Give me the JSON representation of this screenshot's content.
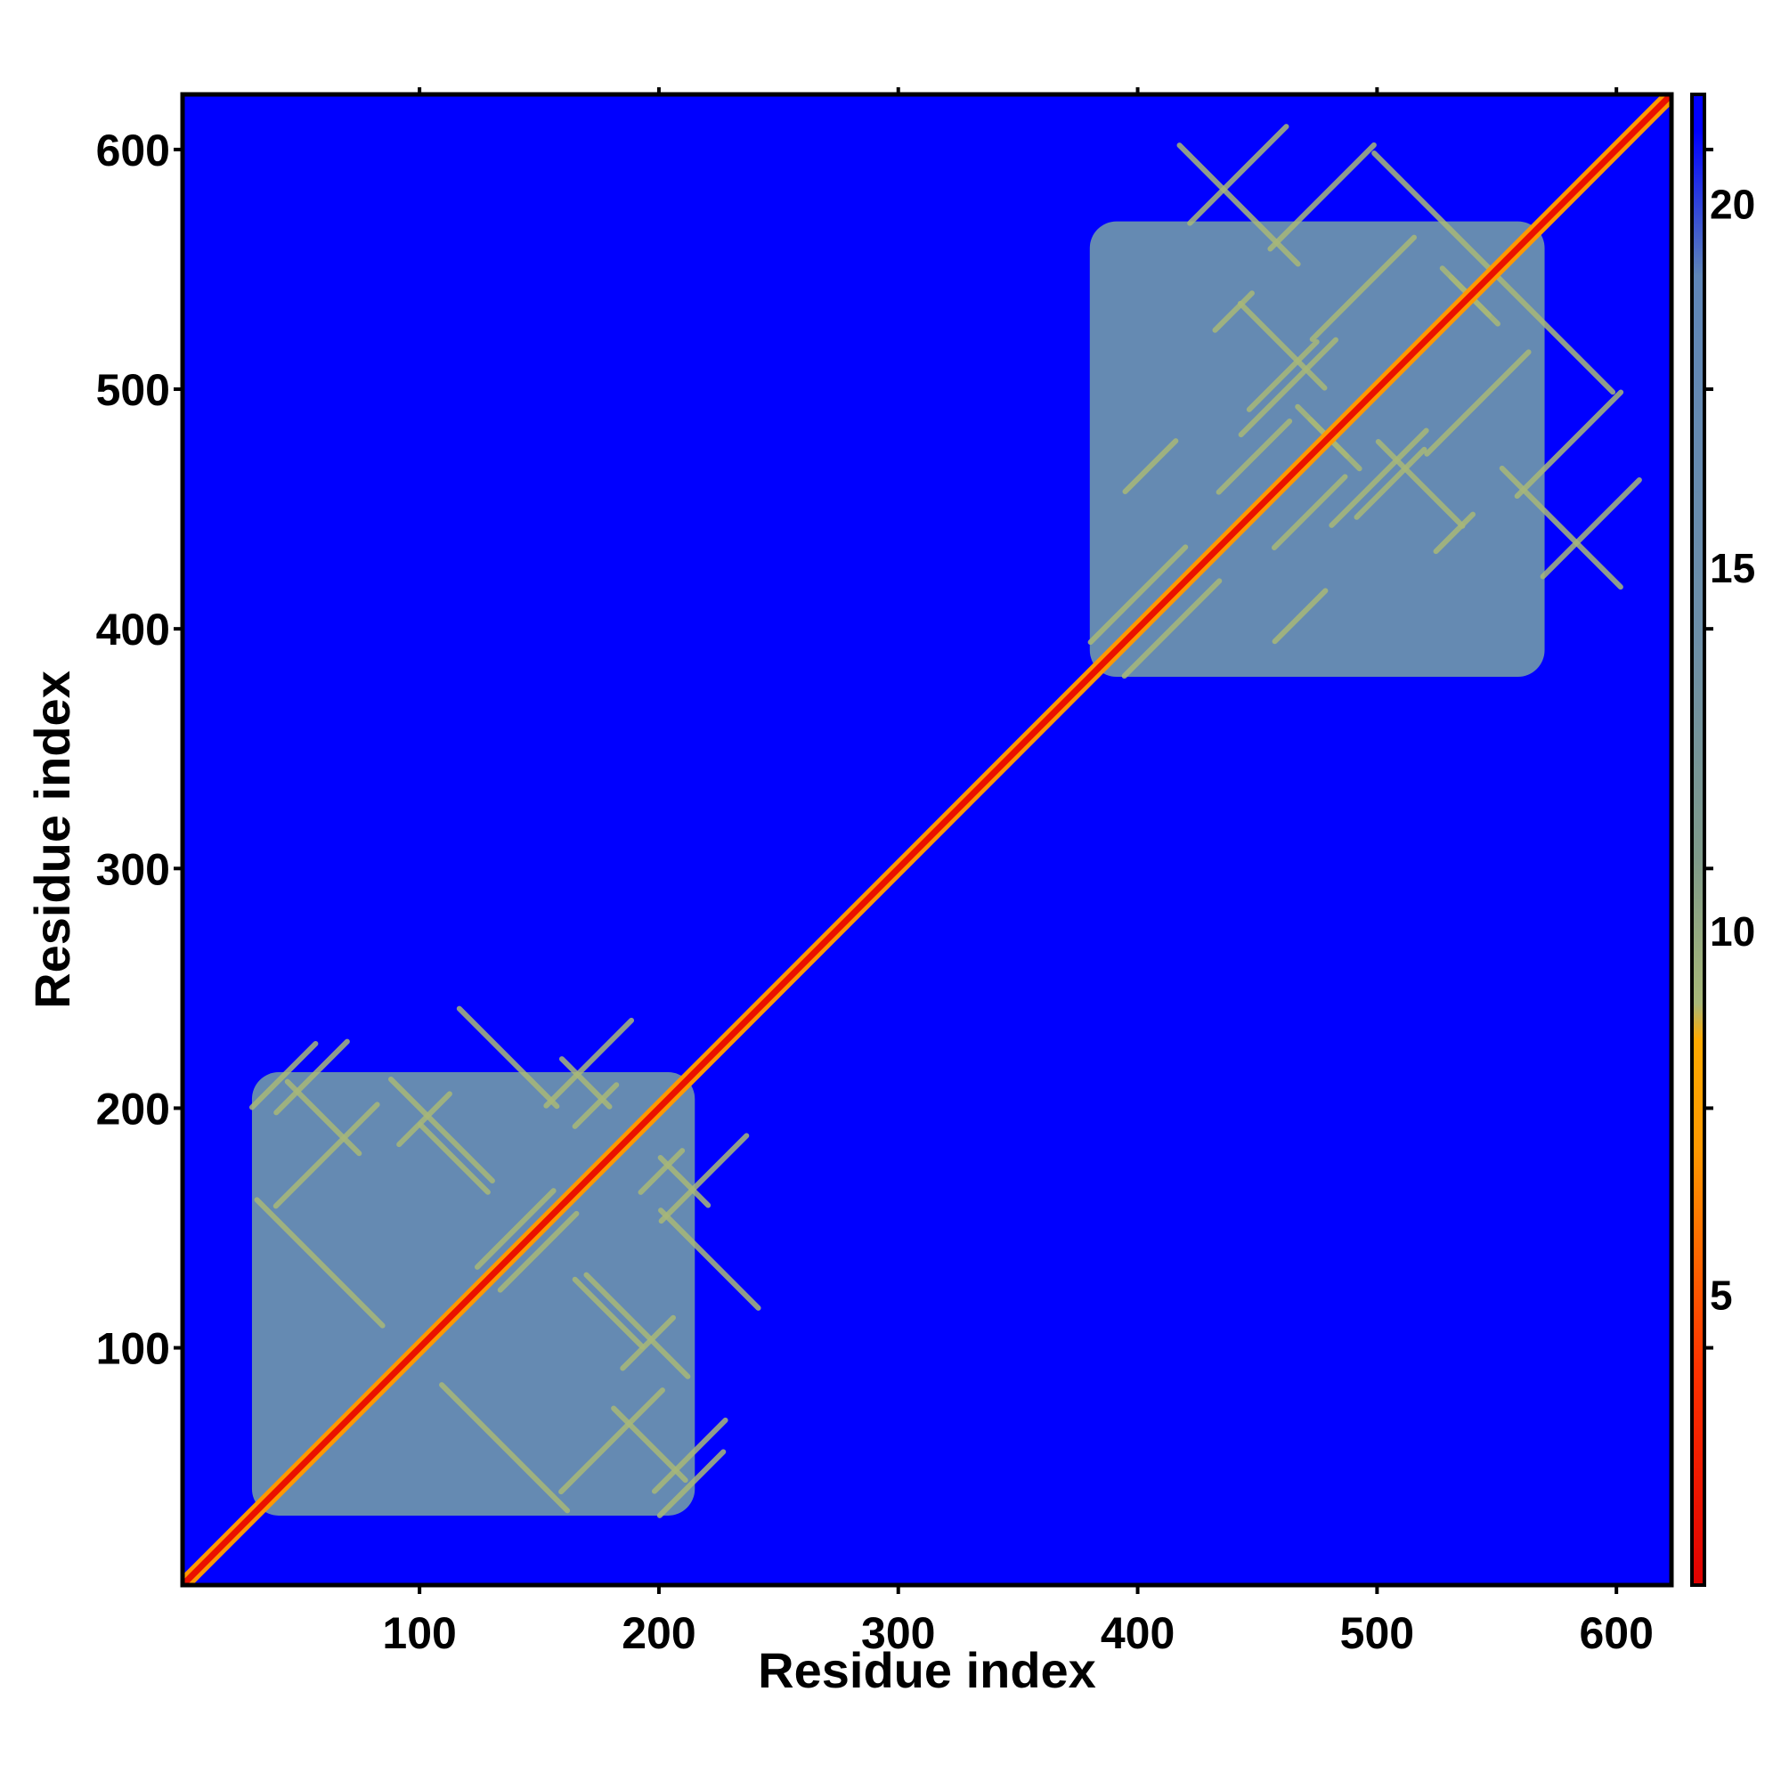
{
  "chart_data": {
    "type": "heatmap",
    "title": "",
    "xlabel": "Residue index",
    "ylabel": "Residue index",
    "xlim": [
      1,
      623
    ],
    "ylim": [
      1,
      623
    ],
    "x_ticks": [
      100,
      200,
      300,
      400,
      500,
      600
    ],
    "y_ticks": [
      100,
      200,
      300,
      400,
      500,
      600
    ],
    "colorbar": {
      "ticks": [
        5,
        10,
        15,
        20
      ],
      "range": [
        1,
        21.5
      ],
      "stops": [
        {
          "value": 1,
          "color": "#e00000"
        },
        {
          "value": 4,
          "color": "#ff3300"
        },
        {
          "value": 7,
          "color": "#ff9900"
        },
        {
          "value": 8.5,
          "color": "#ffaa00"
        },
        {
          "value": 9,
          "color": "#a8b878"
        },
        {
          "value": 11,
          "color": "#7f9a8a"
        },
        {
          "value": 14,
          "color": "#6d8fa8"
        },
        {
          "value": 19,
          "color": "#5f86b8"
        },
        {
          "value": 21,
          "color": "#0000ff"
        }
      ]
    },
    "background_value": 21.5,
    "domains": [
      {
        "from": 30,
        "to": 215,
        "value": 17
      },
      {
        "from": 380,
        "to": 570,
        "value": 17
      }
    ],
    "diagonal_value": 2
  },
  "colors": {
    "background": "#0000ff",
    "domain": "#5b87b9",
    "contact": "#ff8c00",
    "diagonal": "#ff0000"
  }
}
